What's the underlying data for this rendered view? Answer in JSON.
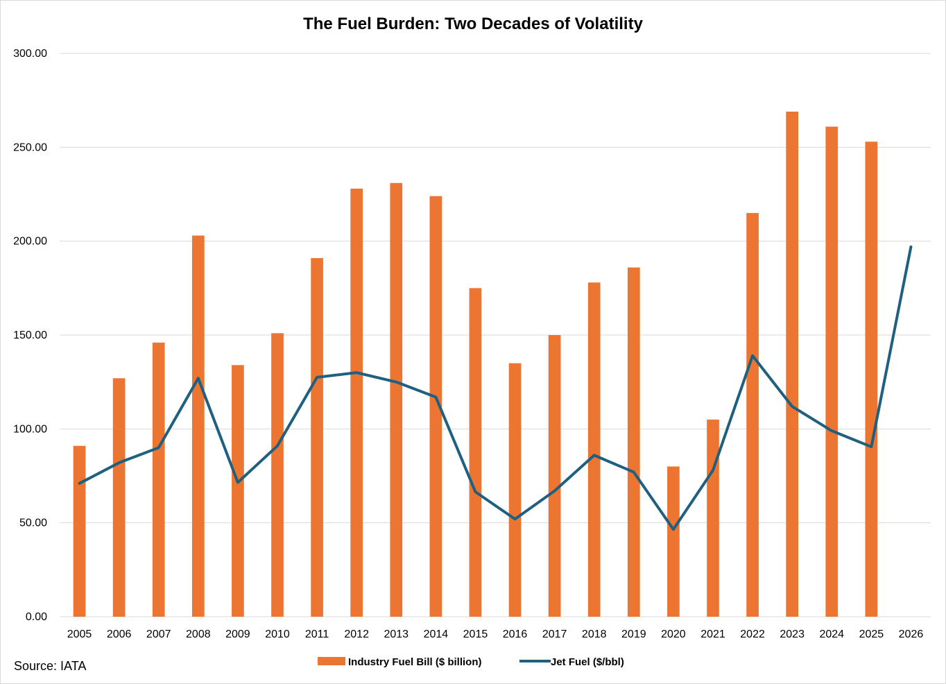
{
  "chart_data": {
    "type": "bar+line",
    "title": "The Fuel Burden: Two Decades of Volatility",
    "categories": [
      "2005",
      "2006",
      "2007",
      "2008",
      "2009",
      "2010",
      "2011",
      "2012",
      "2013",
      "2014",
      "2015",
      "2016",
      "2017",
      "2018",
      "2019",
      "2020",
      "2021",
      "2022",
      "2023",
      "2024",
      "2025",
      "2026"
    ],
    "series": [
      {
        "name": "Industry Fuel Bill ($ billion)",
        "type": "bar",
        "color": "#ED7532",
        "values": [
          91,
          127,
          146,
          203,
          134,
          151,
          191,
          228,
          231,
          224,
          175,
          135,
          150,
          178,
          186,
          80,
          105,
          215,
          269,
          261,
          253,
          null
        ]
      },
      {
        "name": "Jet Fuel ($/bbl)",
        "type": "line",
        "color": "#1F5F7F",
        "values": [
          71,
          82,
          90,
          127,
          71.5,
          91,
          127.5,
          130,
          125,
          117,
          66.5,
          52,
          67,
          86,
          77,
          46.5,
          78,
          139,
          112,
          99,
          90.5,
          197
        ]
      }
    ],
    "yticks": [
      "0.00",
      "50.00",
      "100.00",
      "150.00",
      "200.00",
      "250.00",
      "300.00"
    ],
    "ylim": [
      0,
      300
    ],
    "xlabel": "",
    "ylabel": "",
    "grid": true,
    "legend_position": "bottom"
  },
  "source": "Source: IATA"
}
